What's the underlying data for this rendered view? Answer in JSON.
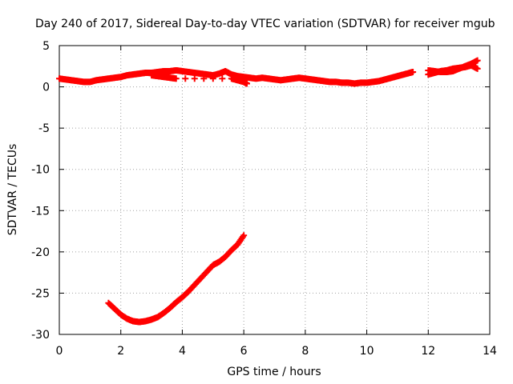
{
  "chart_data": {
    "type": "scatter",
    "title": "Day 240 of 2017, Sidereal Day-to-day VTEC variation (SDTVAR) for receiver mgub",
    "xlabel": "GPS time / hours",
    "ylabel": "SDTVAR / TECUs",
    "xlim": [
      0,
      14
    ],
    "ylim": [
      -30,
      5
    ],
    "xticks": [
      0,
      2,
      4,
      6,
      8,
      10,
      12,
      14
    ],
    "yticks": [
      5,
      0,
      -5,
      -10,
      -15,
      -20,
      -25,
      -30
    ],
    "grid": true,
    "marker": "plus",
    "color": "#ff0000",
    "series": [
      {
        "name": "upper-track",
        "x": [
          0.0,
          0.2,
          0.4,
          0.6,
          0.8,
          1.0,
          1.2,
          1.4,
          1.6,
          1.8,
          2.0,
          2.2,
          2.4,
          2.6,
          2.8,
          3.0,
          3.2,
          3.4,
          3.6,
          3.8,
          4.0,
          4.2,
          4.4,
          4.6,
          4.8,
          5.0,
          5.2,
          5.4,
          5.6,
          5.8,
          6.0,
          6.2,
          6.4,
          6.6,
          6.8,
          7.0,
          7.2,
          7.4,
          7.6,
          7.8,
          8.0,
          8.2,
          8.4,
          8.6,
          8.8,
          9.0,
          9.2,
          9.4,
          9.6,
          9.8,
          10.0,
          10.2,
          10.4,
          10.6,
          10.8,
          11.0,
          11.2,
          11.4,
          11.5
        ],
        "y": [
          1.0,
          0.9,
          0.8,
          0.7,
          0.6,
          0.6,
          0.8,
          0.9,
          1.0,
          1.1,
          1.2,
          1.4,
          1.5,
          1.6,
          1.7,
          1.7,
          1.8,
          1.9,
          1.9,
          2.0,
          1.9,
          1.8,
          1.7,
          1.6,
          1.5,
          1.4,
          1.6,
          1.9,
          1.5,
          1.3,
          1.2,
          1.1,
          1.0,
          1.1,
          1.0,
          0.9,
          0.8,
          0.9,
          1.0,
          1.1,
          1.0,
          0.9,
          0.8,
          0.7,
          0.6,
          0.6,
          0.5,
          0.5,
          0.4,
          0.5,
          0.5,
          0.6,
          0.7,
          0.9,
          1.1,
          1.3,
          1.5,
          1.7,
          1.8
        ]
      },
      {
        "name": "upper-branch",
        "x": [
          3.0,
          3.2,
          3.4,
          3.6,
          3.8,
          5.6,
          5.8,
          6.0,
          6.1
        ],
        "y": [
          1.4,
          1.3,
          1.2,
          1.1,
          1.0,
          1.0,
          0.8,
          0.6,
          0.4
        ]
      },
      {
        "name": "late-track",
        "x": [
          12.0,
          12.2,
          12.4,
          12.6,
          12.8,
          13.0,
          13.2,
          13.4,
          13.6
        ],
        "y": [
          1.5,
          1.7,
          1.9,
          2.0,
          2.2,
          2.3,
          2.4,
          2.6,
          2.2
        ]
      },
      {
        "name": "late-branch",
        "x": [
          12.0,
          12.2,
          12.4,
          12.6,
          12.8,
          13.0,
          13.2,
          13.4,
          13.6
        ],
        "y": [
          2.0,
          1.9,
          1.8,
          1.8,
          1.9,
          2.2,
          2.5,
          2.8,
          3.2
        ]
      },
      {
        "name": "lower-track",
        "x": [
          1.6,
          1.8,
          2.0,
          2.2,
          2.4,
          2.6,
          2.8,
          3.0,
          3.2,
          3.4,
          3.6,
          3.8,
          4.0,
          4.2,
          4.4,
          4.6,
          4.8,
          5.0,
          5.2,
          5.4,
          5.6,
          5.8,
          6.0
        ],
        "y": [
          -26.2,
          -26.9,
          -27.6,
          -28.1,
          -28.4,
          -28.5,
          -28.4,
          -28.2,
          -27.9,
          -27.4,
          -26.8,
          -26.1,
          -25.5,
          -24.8,
          -24.0,
          -23.2,
          -22.4,
          -21.6,
          -21.2,
          -20.6,
          -19.8,
          -19.1,
          -18.0
        ]
      }
    ]
  }
}
